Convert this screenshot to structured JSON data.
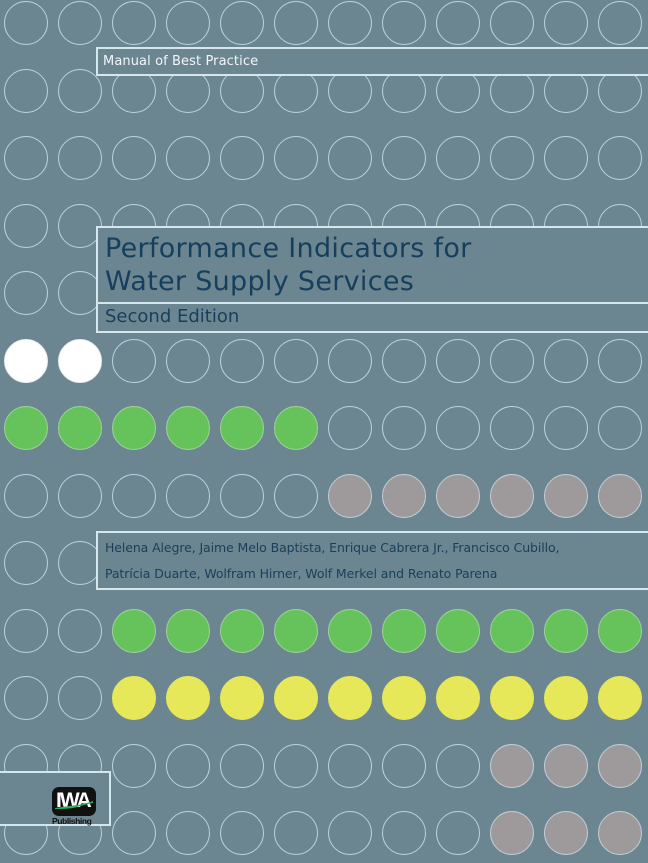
{
  "cover": {
    "series_label": "Manual of Best Practice",
    "title_line1": "Performance Indicators for",
    "title_line2": "Water Supply Services",
    "edition": "Second Edition",
    "authors_line1": "Helena Alegre, Jaime Melo Baptista, Enrique Cabrera Jr., Francisco Cubillo,",
    "authors_line2": "Patrícia Duarte, Wolfram Hirner, Wolf Merkel and Renato Parena",
    "publisher": {
      "logo_letters": "IWA",
      "logo_text": "Publishing"
    }
  },
  "colors": {
    "background": "#6c8691",
    "title_text": "#153f5d",
    "circle_outline": "#b9d3e0",
    "white": "#ffffff",
    "green": "#66c35c",
    "yellow": "#e6e85a",
    "gray": "#9e9a9c"
  },
  "dot_grid": {
    "columns": 12,
    "rows": 13,
    "filled": [
      {
        "row": 5,
        "cols": [
          0,
          1
        ],
        "fill": "white"
      },
      {
        "row": 6,
        "cols": [
          0,
          1,
          2,
          3,
          4,
          5
        ],
        "fill": "green"
      },
      {
        "row": 7,
        "cols": [
          6,
          7,
          8,
          9,
          10,
          11
        ],
        "fill": "gray"
      },
      {
        "row": 9,
        "cols": [
          2,
          3,
          4,
          5,
          6,
          7,
          8,
          9,
          10,
          11
        ],
        "fill": "green"
      },
      {
        "row": 10,
        "cols": [
          2,
          3,
          4,
          5,
          6,
          7,
          8,
          9,
          10,
          11
        ],
        "fill": "yellow"
      },
      {
        "row": 11,
        "cols": [
          9,
          10,
          11
        ],
        "fill": "gray"
      },
      {
        "row": 12,
        "cols": [
          9,
          10,
          11
        ],
        "fill": "gray"
      }
    ]
  }
}
